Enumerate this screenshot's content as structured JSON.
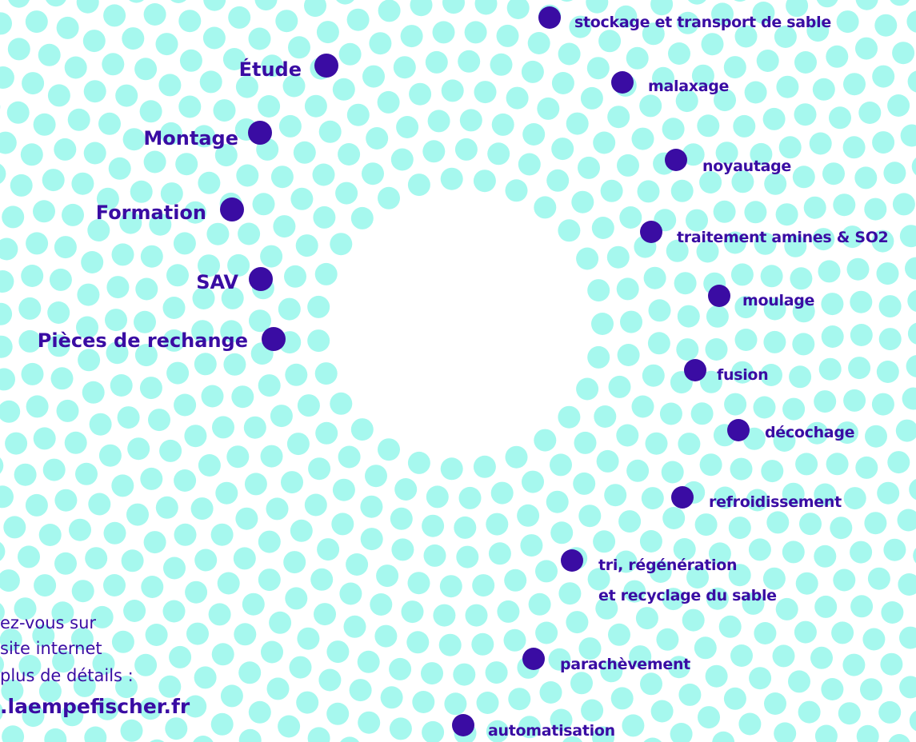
{
  "services": [
    "Étude",
    "Montage",
    "Formation",
    "SAV",
    "Pièces de rechange"
  ],
  "process_steps": [
    {
      "lines": [
        "stockage et transport de sable"
      ]
    },
    {
      "lines": [
        "malaxage"
      ]
    },
    {
      "lines": [
        "noyautage"
      ]
    },
    {
      "lines": [
        "traitement amines & SO2"
      ]
    },
    {
      "lines": [
        "moulage"
      ]
    },
    {
      "lines": [
        "fusion"
      ]
    },
    {
      "lines": [
        "décochage"
      ]
    },
    {
      "lines": [
        "refroidissement"
      ]
    },
    {
      "lines": [
        "tri, régénération",
        "et recyclage du sable"
      ]
    },
    {
      "lines": [
        "parachèvement"
      ]
    },
    {
      "lines": [
        "automatisation"
      ]
    }
  ],
  "website": {
    "lines": [
      "ez-vous sur",
      "site internet",
      "plus de détails :"
    ],
    "url": ".laempefischer.fr"
  }
}
